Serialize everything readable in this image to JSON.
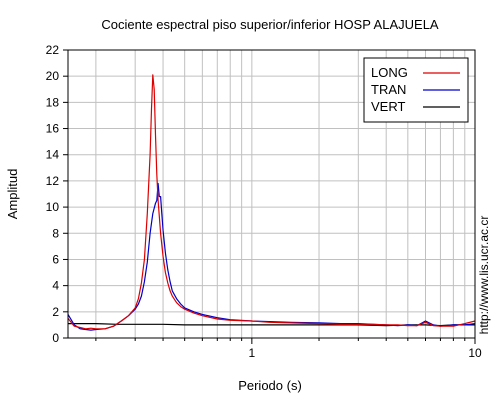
{
  "chart_data": {
    "type": "line",
    "title": "Cociente espectral piso superior/inferior  HOSP ALAJUELA",
    "xlabel": "Periodo (s)",
    "ylabel": "Amplitud",
    "x_scale": "log",
    "xlim": [
      0.15,
      10
    ],
    "ylim": [
      0,
      22
    ],
    "x_tick_labels": [
      {
        "value": 1,
        "label": "1"
      },
      {
        "value": 10,
        "label": "10"
      }
    ],
    "x_grid": [
      0.2,
      0.3,
      0.4,
      0.5,
      0.6,
      0.7,
      0.8,
      0.9,
      1,
      2,
      3,
      4,
      5,
      6,
      7,
      8,
      9,
      10
    ],
    "y_ticks": [
      0,
      2,
      4,
      6,
      8,
      10,
      12,
      14,
      16,
      18,
      20,
      22
    ],
    "grid": true,
    "legend_position": "top-right",
    "side_label": "http://www.lis.ucr.ac.cr",
    "series": [
      {
        "name": "LONG",
        "color": "#dd0000",
        "x": [
          0.15,
          0.16,
          0.17,
          0.18,
          0.19,
          0.2,
          0.22,
          0.24,
          0.26,
          0.28,
          0.3,
          0.31,
          0.32,
          0.33,
          0.34,
          0.35,
          0.355,
          0.36,
          0.365,
          0.37,
          0.375,
          0.38,
          0.39,
          0.4,
          0.41,
          0.42,
          0.43,
          0.44,
          0.46,
          0.48,
          0.5,
          0.55,
          0.6,
          0.7,
          0.8,
          1.0,
          1.2,
          1.5,
          2.0,
          2.5,
          3.0,
          3.5,
          4.0,
          4.5,
          5.0,
          5.5,
          6.0,
          6.5,
          7.0,
          8.0,
          9.0,
          10.0
        ],
        "values": [
          1.5,
          0.9,
          0.8,
          0.7,
          0.75,
          0.7,
          0.7,
          0.9,
          1.3,
          1.7,
          2.3,
          3.0,
          4.2,
          6.0,
          9.5,
          14.0,
          17.5,
          20.1,
          19.0,
          15.5,
          12.5,
          10.5,
          8.0,
          6.2,
          5.0,
          4.2,
          3.6,
          3.2,
          2.7,
          2.4,
          2.2,
          1.9,
          1.7,
          1.45,
          1.35,
          1.3,
          1.2,
          1.15,
          1.1,
          1.05,
          1.05,
          1.05,
          1.0,
          1.0,
          0.95,
          0.95,
          1.2,
          0.95,
          0.9,
          0.9,
          1.1,
          1.3
        ]
      },
      {
        "name": "TRAN",
        "color": "#0000cc",
        "x": [
          0.15,
          0.16,
          0.17,
          0.18,
          0.19,
          0.2,
          0.22,
          0.24,
          0.26,
          0.28,
          0.3,
          0.31,
          0.32,
          0.33,
          0.34,
          0.35,
          0.36,
          0.37,
          0.375,
          0.38,
          0.385,
          0.39,
          0.395,
          0.4,
          0.41,
          0.42,
          0.43,
          0.44,
          0.46,
          0.48,
          0.5,
          0.55,
          0.6,
          0.7,
          0.8,
          1.0,
          1.2,
          1.5,
          2.0,
          2.5,
          3.0,
          3.5,
          4.0,
          4.5,
          5.0,
          5.5,
          6.0,
          6.5,
          7.0,
          8.0,
          9.0,
          10.0
        ],
        "values": [
          1.8,
          1.0,
          0.7,
          0.65,
          0.6,
          0.65,
          0.7,
          0.9,
          1.3,
          1.7,
          2.2,
          2.6,
          3.2,
          4.3,
          5.8,
          8.0,
          9.5,
          10.3,
          10.5,
          11.8,
          10.8,
          10.8,
          9.5,
          8.2,
          6.5,
          5.2,
          4.3,
          3.6,
          3.0,
          2.6,
          2.3,
          2.0,
          1.8,
          1.55,
          1.4,
          1.3,
          1.25,
          1.2,
          1.15,
          1.1,
          1.1,
          1.05,
          1.0,
          0.95,
          1.0,
          0.95,
          1.3,
          1.0,
          0.9,
          1.0,
          1.0,
          1.1
        ]
      },
      {
        "name": "VERT",
        "color": "#000000",
        "x": [
          0.15,
          0.16,
          0.18,
          0.2,
          0.25,
          0.3,
          0.4,
          0.5,
          0.6,
          0.8,
          1.0,
          1.5,
          2.0,
          3.0,
          4.0,
          5.0,
          6.0,
          7.0,
          8.0,
          10.0
        ],
        "values": [
          1.1,
          1.1,
          1.1,
          1.1,
          1.05,
          1.05,
          1.05,
          1.0,
          1.0,
          1.0,
          1.0,
          1.0,
          1.0,
          1.0,
          0.95,
          1.0,
          1.0,
          0.95,
          1.0,
          1.0
        ]
      }
    ]
  }
}
